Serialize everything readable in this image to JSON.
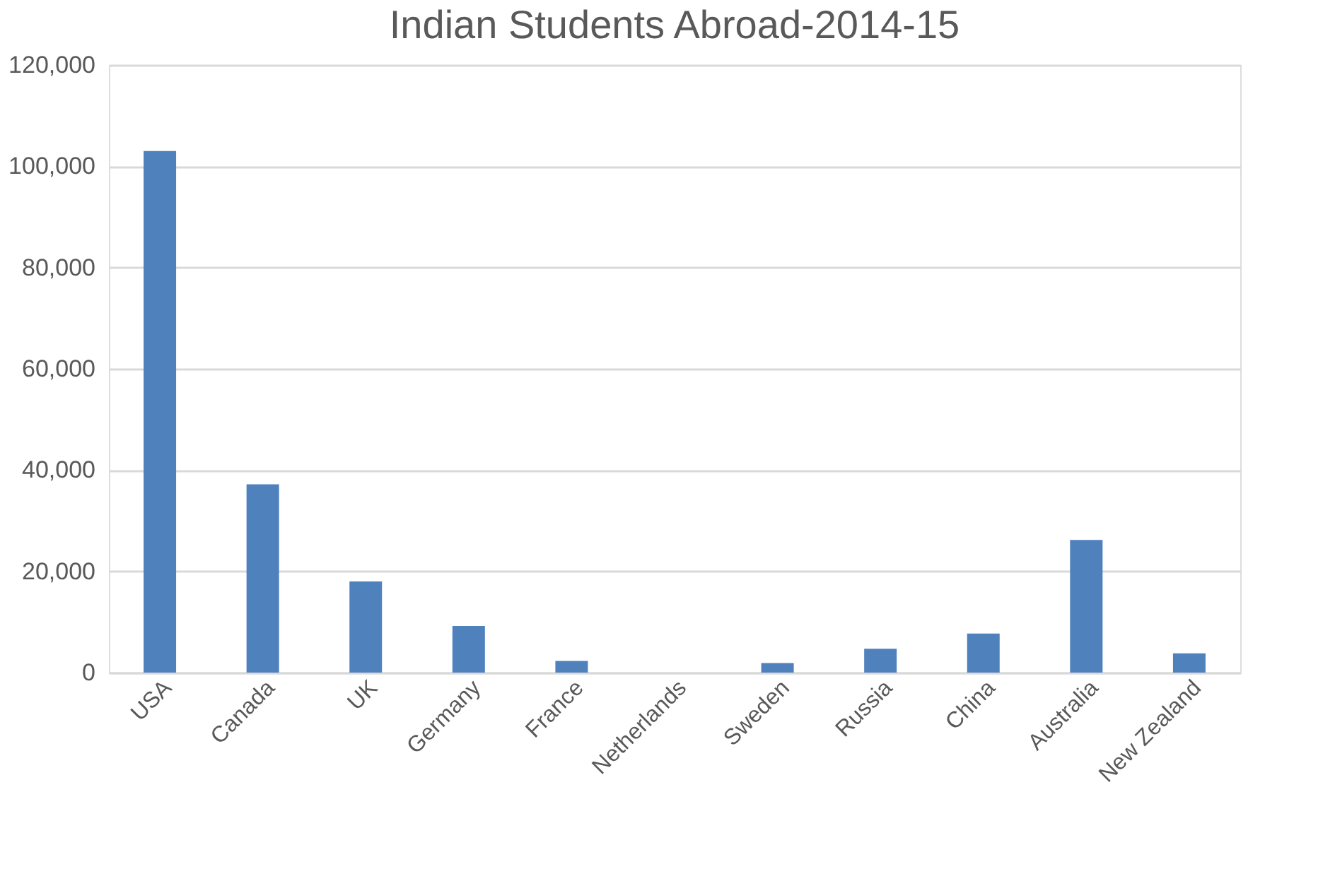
{
  "chart_data": {
    "type": "bar",
    "title": "Indian Students Abroad-2014-15",
    "categories": [
      "USA",
      "Canada",
      "UK",
      "Germany",
      "France",
      "Netherlands",
      "Sweden",
      "Russia",
      "China",
      "Australia",
      "New Zealand"
    ],
    "values": [
      103000,
      37200,
      18000,
      9200,
      2300,
      0,
      1900,
      4700,
      7700,
      26200,
      3800
    ],
    "color": "#4f81bd",
    "ylim": [
      0,
      120000
    ],
    "yticks": [
      {
        "value": 0,
        "label": "0"
      },
      {
        "value": 20000,
        "label": "20,000"
      },
      {
        "value": 40000,
        "label": "40,000"
      },
      {
        "value": 60000,
        "label": "60,000"
      },
      {
        "value": 80000,
        "label": "80,000"
      },
      {
        "value": 100000,
        "label": "100,000"
      },
      {
        "value": 120000,
        "label": "120,000"
      }
    ],
    "grid": "y"
  }
}
